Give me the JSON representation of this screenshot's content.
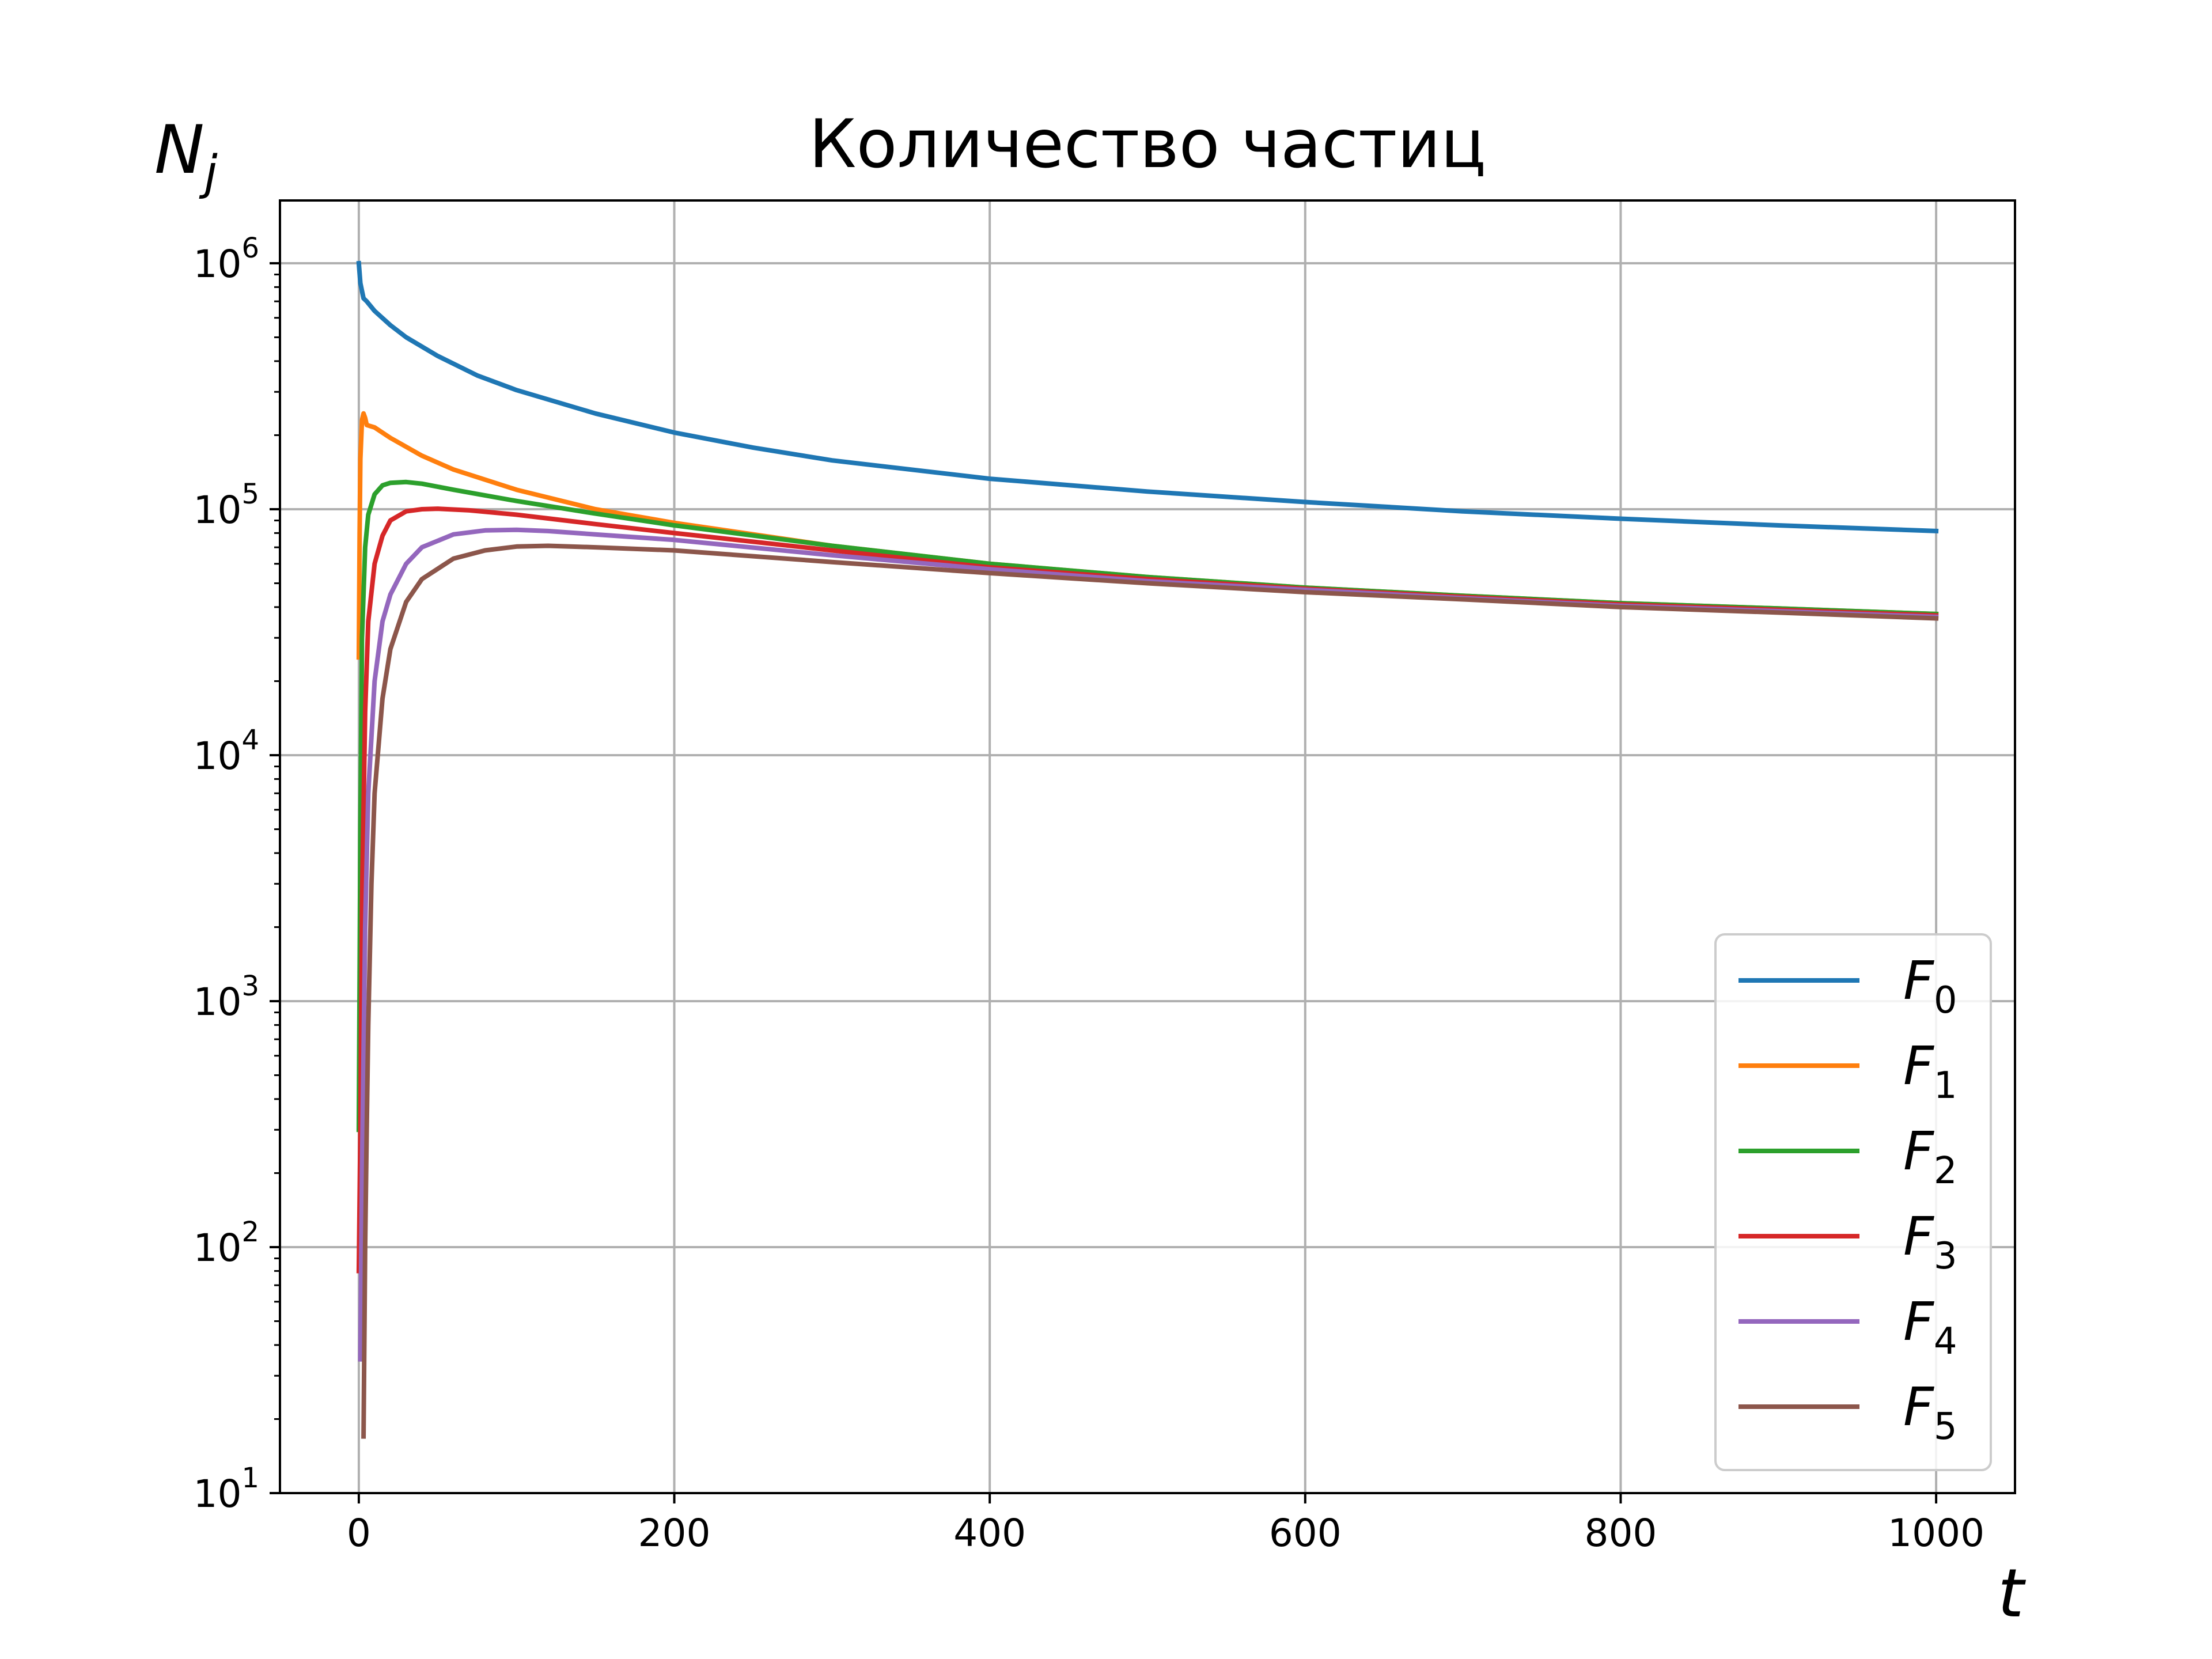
{
  "chart_data": {
    "type": "line",
    "title": "Количество частиц",
    "xlabel": "t",
    "ylabel_base": "N",
    "ylabel_sub": "j",
    "xlim": [
      -50,
      1050
    ],
    "ylim": [
      10,
      1800000
    ],
    "yscale": "log",
    "grid": true,
    "legend_position": "lower-right",
    "xticks": [
      0,
      200,
      400,
      600,
      800,
      1000
    ],
    "yticks": [
      {
        "value": 10,
        "base": "10",
        "exp": "1"
      },
      {
        "value": 100,
        "base": "10",
        "exp": "2"
      },
      {
        "value": 1000,
        "base": "10",
        "exp": "3"
      },
      {
        "value": 10000,
        "base": "10",
        "exp": "4"
      },
      {
        "value": 100000,
        "base": "10",
        "exp": "5"
      },
      {
        "value": 1000000,
        "base": "10",
        "exp": "6"
      }
    ],
    "series": [
      {
        "name_base": "F",
        "name_sub": "0",
        "color": "#1f77b4",
        "points": [
          [
            0,
            1000000
          ],
          [
            1,
            830000
          ],
          [
            3,
            720000
          ],
          [
            5,
            700000
          ],
          [
            10,
            640000
          ],
          [
            20,
            560000
          ],
          [
            30,
            500000
          ],
          [
            50,
            420000
          ],
          [
            75,
            350000
          ],
          [
            100,
            305000
          ],
          [
            150,
            245000
          ],
          [
            200,
            205000
          ],
          [
            250,
            178000
          ],
          [
            300,
            158000
          ],
          [
            400,
            133000
          ],
          [
            500,
            118000
          ],
          [
            600,
            107000
          ],
          [
            700,
            98000
          ],
          [
            800,
            91500
          ],
          [
            900,
            86000
          ],
          [
            1000,
            81500
          ]
        ]
      },
      {
        "name_base": "F",
        "name_sub": "1",
        "color": "#ff7f0e",
        "points": [
          [
            0,
            25000
          ],
          [
            0.5,
            80000
          ],
          [
            1,
            160000
          ],
          [
            2,
            230000
          ],
          [
            3,
            245000
          ],
          [
            4,
            235000
          ],
          [
            5,
            220000
          ],
          [
            10,
            215000
          ],
          [
            20,
            195000
          ],
          [
            40,
            165000
          ],
          [
            60,
            145000
          ],
          [
            100,
            120000
          ],
          [
            150,
            100000
          ],
          [
            200,
            88000
          ],
          [
            300,
            71000
          ],
          [
            400,
            60000
          ],
          [
            500,
            53000
          ],
          [
            600,
            48000
          ],
          [
            700,
            44500
          ],
          [
            800,
            41500
          ],
          [
            900,
            39500
          ],
          [
            1000,
            37500
          ]
        ]
      },
      {
        "name_base": "F",
        "name_sub": "2",
        "color": "#2ca02c",
        "points": [
          [
            0,
            300
          ],
          [
            1,
            5000
          ],
          [
            2,
            30000
          ],
          [
            4,
            70000
          ],
          [
            6,
            95000
          ],
          [
            10,
            115000
          ],
          [
            15,
            125000
          ],
          [
            20,
            128000
          ],
          [
            30,
            129000
          ],
          [
            40,
            127000
          ],
          [
            60,
            120000
          ],
          [
            100,
            108000
          ],
          [
            150,
            96000
          ],
          [
            200,
            86000
          ],
          [
            300,
            71000
          ],
          [
            400,
            60000
          ],
          [
            500,
            53000
          ],
          [
            600,
            48000
          ],
          [
            700,
            44500
          ],
          [
            800,
            41500
          ],
          [
            900,
            39500
          ],
          [
            1000,
            37500
          ]
        ]
      },
      {
        "name_base": "F",
        "name_sub": "3",
        "color": "#d62728",
        "points": [
          [
            0,
            80
          ],
          [
            1,
            300
          ],
          [
            2,
            2500
          ],
          [
            4,
            15000
          ],
          [
            6,
            35000
          ],
          [
            10,
            60000
          ],
          [
            15,
            78000
          ],
          [
            20,
            90000
          ],
          [
            30,
            98000
          ],
          [
            40,
            100000
          ],
          [
            50,
            100500
          ],
          [
            70,
            99000
          ],
          [
            100,
            95000
          ],
          [
            150,
            87000
          ],
          [
            200,
            80000
          ],
          [
            300,
            68000
          ],
          [
            400,
            58000
          ],
          [
            500,
            52000
          ],
          [
            600,
            47500
          ],
          [
            700,
            44000
          ],
          [
            800,
            41000
          ],
          [
            900,
            39000
          ],
          [
            1000,
            37000
          ]
        ]
      },
      {
        "name_base": "F",
        "name_sub": "4",
        "color": "#9467bd",
        "points": [
          [
            1,
            35
          ],
          [
            2,
            200
          ],
          [
            4,
            2000
          ],
          [
            6,
            7000
          ],
          [
            10,
            20000
          ],
          [
            15,
            35000
          ],
          [
            20,
            45000
          ],
          [
            30,
            60000
          ],
          [
            40,
            70000
          ],
          [
            60,
            79000
          ],
          [
            80,
            82000
          ],
          [
            100,
            82500
          ],
          [
            120,
            81500
          ],
          [
            150,
            79000
          ],
          [
            200,
            75000
          ],
          [
            300,
            65000
          ],
          [
            400,
            57000
          ],
          [
            500,
            51000
          ],
          [
            600,
            47000
          ],
          [
            700,
            43500
          ],
          [
            800,
            40500
          ],
          [
            900,
            38500
          ],
          [
            1000,
            36500
          ]
        ]
      },
      {
        "name_base": "F",
        "name_sub": "5",
        "color": "#8c564b",
        "points": [
          [
            3,
            17
          ],
          [
            4,
            100
          ],
          [
            5,
            300
          ],
          [
            6,
            800
          ],
          [
            8,
            3000
          ],
          [
            10,
            7000
          ],
          [
            15,
            17000
          ],
          [
            20,
            27000
          ],
          [
            30,
            42000
          ],
          [
            40,
            52000
          ],
          [
            60,
            63000
          ],
          [
            80,
            68000
          ],
          [
            100,
            70500
          ],
          [
            120,
            71000
          ],
          [
            150,
            70000
          ],
          [
            200,
            68000
          ],
          [
            300,
            61000
          ],
          [
            400,
            55000
          ],
          [
            500,
            50000
          ],
          [
            600,
            46000
          ],
          [
            700,
            43000
          ],
          [
            800,
            40000
          ],
          [
            900,
            38000
          ],
          [
            1000,
            36000
          ]
        ]
      }
    ]
  }
}
